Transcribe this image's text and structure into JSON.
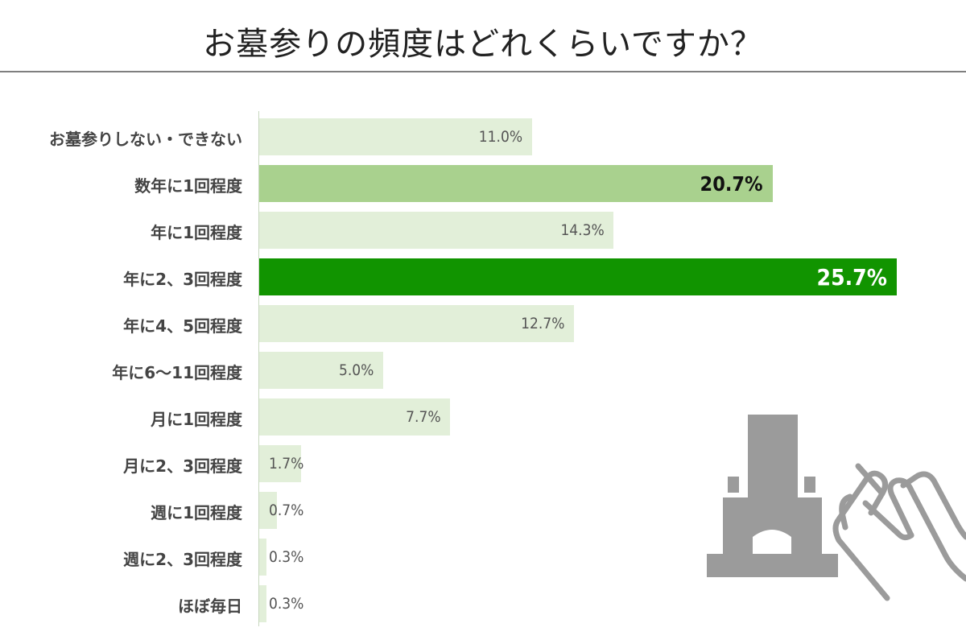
{
  "title": "お墓参りの頻度はどれくらいですか？",
  "colors": {
    "light": "#e2efd9",
    "medium": "#a9d18e",
    "dark": "#119400",
    "icon": "#9b9b9b"
  },
  "illustration": {
    "icon": "grave-and-praying-hands-icon"
  },
  "chart_data": {
    "type": "bar",
    "orientation": "horizontal",
    "title": "お墓参りの頻度はどれくらいですか？",
    "xlim": [
      0,
      26
    ],
    "categories": [
      "お墓参りしない・できない",
      "数年に1回程度",
      "年に1回程度",
      "年に2、3回程度",
      "年に4、5回程度",
      "年に6～11回程度",
      "月に1回程度",
      "月に2、3回程度",
      "週に1回程度",
      "週に2、3回程度",
      "ほぼ毎日"
    ],
    "values": [
      11.0,
      20.7,
      14.3,
      25.7,
      12.7,
      5.0,
      7.7,
      1.7,
      0.7,
      0.3,
      0.3
    ],
    "labels": [
      "11.0%",
      "20.7%",
      "14.3%",
      "25.7%",
      "12.7%",
      "5.0%",
      "7.7%",
      "1.7%",
      "0.7%",
      "0.3%",
      "0.3%"
    ],
    "highlight": [
      "normal",
      "mid",
      "normal",
      "top",
      "normal",
      "normal",
      "normal",
      "normal",
      "normal",
      "normal",
      "normal"
    ]
  }
}
